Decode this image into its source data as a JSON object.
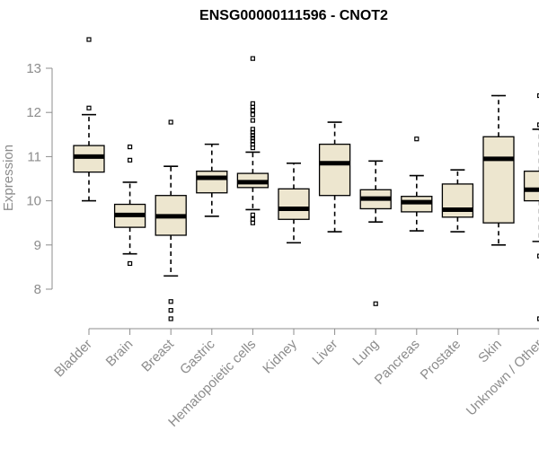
{
  "chart_data": {
    "type": "boxplot",
    "title": "ENSG00000111596 - CNOT2",
    "xlabel": "",
    "ylabel": "Expression",
    "ylim": [
      7.2,
      13.8
    ],
    "yticks": [
      8,
      9,
      10,
      11,
      12,
      13
    ],
    "box_color": "#ede6cf",
    "categories": [
      "Bladder",
      "Brain",
      "Breast",
      "Gastric",
      "Hematopoietic cells",
      "Kidney",
      "Liver",
      "Lung",
      "Pancreas",
      "Prostate",
      "Skin",
      "Unknown / Other"
    ],
    "boxes": [
      {
        "name": "Bladder",
        "q1": 10.65,
        "median": 11.0,
        "q3": 11.25,
        "whisker_low": 10.0,
        "whisker_high": 11.95,
        "outliers": [
          12.1,
          13.65
        ]
      },
      {
        "name": "Brain",
        "q1": 9.4,
        "median": 9.68,
        "q3": 9.92,
        "whisker_low": 8.8,
        "whisker_high": 10.42,
        "outliers": [
          8.58,
          10.92,
          11.22
        ]
      },
      {
        "name": "Breast",
        "q1": 9.22,
        "median": 9.65,
        "q3": 10.12,
        "whisker_low": 8.3,
        "whisker_high": 10.78,
        "outliers": [
          7.72,
          7.52,
          7.33,
          11.78
        ]
      },
      {
        "name": "Gastric",
        "q1": 10.18,
        "median": 10.52,
        "q3": 10.67,
        "whisker_low": 9.65,
        "whisker_high": 11.28,
        "outliers": []
      },
      {
        "name": "Hematopoietic cells",
        "q1": 10.3,
        "median": 10.42,
        "q3": 10.62,
        "whisker_low": 9.8,
        "whisker_high": 11.1,
        "outliers": [
          9.5,
          9.58,
          9.68,
          11.2,
          11.28,
          11.35,
          11.42,
          11.48,
          11.55,
          11.62,
          11.82,
          11.95,
          12.05,
          12.12,
          12.2,
          13.22
        ]
      },
      {
        "name": "Kidney",
        "q1": 9.58,
        "median": 9.82,
        "q3": 10.27,
        "whisker_low": 9.05,
        "whisker_high": 10.85,
        "outliers": []
      },
      {
        "name": "Liver",
        "q1": 10.12,
        "median": 10.85,
        "q3": 11.28,
        "whisker_low": 9.3,
        "whisker_high": 11.78,
        "outliers": []
      },
      {
        "name": "Lung",
        "q1": 9.82,
        "median": 10.05,
        "q3": 10.25,
        "whisker_low": 9.52,
        "whisker_high": 10.9,
        "outliers": [
          7.67
        ]
      },
      {
        "name": "Pancreas",
        "q1": 9.75,
        "median": 9.97,
        "q3": 10.1,
        "whisker_low": 9.32,
        "whisker_high": 10.57,
        "outliers": [
          11.4
        ]
      },
      {
        "name": "Prostate",
        "q1": 9.63,
        "median": 9.8,
        "q3": 10.38,
        "whisker_low": 9.3,
        "whisker_high": 10.7,
        "outliers": []
      },
      {
        "name": "Skin",
        "q1": 9.5,
        "median": 10.95,
        "q3": 11.45,
        "whisker_low": 9.0,
        "whisker_high": 12.38,
        "outliers": []
      },
      {
        "name": "Unknown / Other",
        "q1": 10.0,
        "median": 10.25,
        "q3": 10.67,
        "whisker_low": 9.08,
        "whisker_high": 11.62,
        "outliers": [
          8.75,
          7.33,
          11.72,
          12.38
        ]
      }
    ]
  }
}
